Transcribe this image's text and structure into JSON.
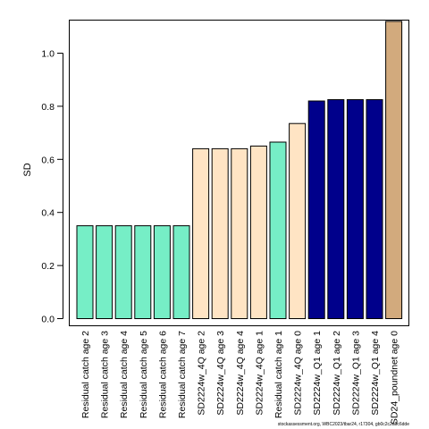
{
  "chart_data": {
    "type": "bar",
    "title": "",
    "xlabel": "",
    "ylabel": "SD",
    "ylim": [
      0,
      1.12
    ],
    "yticks": [
      "0.0",
      "0.2",
      "0.4",
      "0.6",
      "0.8",
      "1.0"
    ],
    "grid": false,
    "legend": "none",
    "categories": [
      "Residual catch age 2",
      "Residual catch age 3",
      "Residual catch age 4",
      "Residual catch age 5",
      "Residual catch age 6",
      "Residual catch age 7",
      "SD2224w_4Q age 2",
      "SD2224w_4Q age 3",
      "SD2224w_4Q age 4",
      "SD2224w_4Q age 1",
      "Residual catch age 1",
      "SD2224w_4Q age 0",
      "SD2224w_Q1 age 1",
      "SD2224w_Q1 age 2",
      "SD2224w_Q1 age 3",
      "SD2224w_Q1 age 4",
      "SD24_poundnet age 0"
    ],
    "values": [
      0.35,
      0.35,
      0.35,
      0.35,
      0.35,
      0.35,
      0.64,
      0.64,
      0.64,
      0.65,
      0.665,
      0.735,
      0.82,
      0.825,
      0.825,
      0.825,
      1.12
    ],
    "colors": [
      "#76EEC6",
      "#76EEC6",
      "#76EEC6",
      "#76EEC6",
      "#76EEC6",
      "#76EEC6",
      "#FFE4C4",
      "#FFE4C4",
      "#FFE4C4",
      "#FFE4C4",
      "#76EEC6",
      "#FFE4C4",
      "#00008B",
      "#00008B",
      "#00008B",
      "#00008B",
      "#D2AA7D"
    ]
  },
  "footnote": "stockassessment.org, WBC2023/tbar24, r17304, gb0c2c2a0c6dde"
}
